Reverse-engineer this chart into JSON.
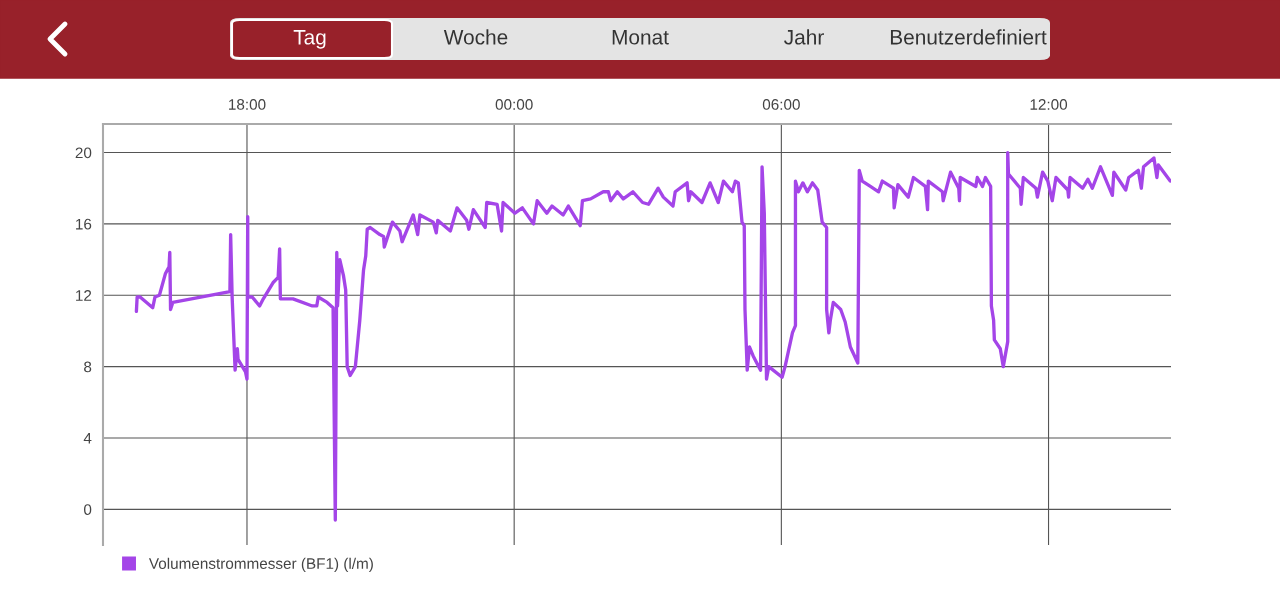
{
  "chart_data": {
    "type": "line",
    "annotations": [
      "Tag",
      "Woche",
      "Monat",
      "Jahr",
      "Benutzerdefiniert"
    ],
    "xlim": [
      "2000-01-01T14:46",
      "2000-01-02T14:45"
    ],
    "xticks": [
      {
        "value": "2000-01-01T18:00",
        "label": "18:00"
      },
      {
        "value": "2000-01-02T00:00",
        "label": "00:00"
      },
      {
        "value": "2000-01-02T06:00",
        "label": "06:00"
      },
      {
        "value": "2000-01-02T12:00",
        "label": "12:00"
      }
    ],
    "ylim": [
      -2,
      21.6
    ],
    "yticks": [
      0,
      4,
      8,
      12,
      16,
      20
    ],
    "grid": true,
    "legend": "bottom left",
    "marker": "none",
    "line_style": "solid",
    "series": [
      {
        "name": "Volumenstrommesser (BF1) (l/m)",
        "color": "#a445e8",
        "x": [
          "2000-01-01T15:31",
          "2000-01-01T15:32",
          "2000-01-01T15:36",
          "2000-01-01T15:53",
          "2000-01-01T15:56",
          "2000-01-01T16:02",
          "2000-01-01T16:10",
          "2000-01-01T16:15",
          "2000-01-01T16:16",
          "2000-01-01T16:17",
          "2000-01-01T16:20",
          "2000-01-01T17:37",
          "2000-01-01T17:38",
          "2000-01-01T17:40",
          "2000-01-01T17:44",
          "2000-01-01T17:47",
          "2000-01-01T17:48",
          "2000-01-01T17:58",
          "2000-01-01T18:00",
          "2000-01-01T18:01",
          "2000-01-01T18:01",
          "2000-01-01T18:07",
          "2000-01-01T18:17",
          "2000-01-01T18:22",
          "2000-01-01T18:35",
          "2000-01-01T18:42",
          "2000-01-01T18:44",
          "2000-01-01T18:45",
          "2000-01-01T19:02",
          "2000-01-01T19:28",
          "2000-01-01T19:34",
          "2000-01-01T19:36",
          "2000-01-01T19:48",
          "2000-01-01T19:56",
          "2000-01-01T19:59",
          "2000-01-01T20:01",
          "2000-01-01T20:02",
          "2000-01-01T20:05",
          "2000-01-01T20:10",
          "2000-01-01T20:13",
          "2000-01-01T20:15",
          "2000-01-01T20:19",
          "2000-01-01T20:26",
          "2000-01-01T20:32",
          "2000-01-01T20:37",
          "2000-01-01T20:40",
          "2000-01-01T20:42",
          "2000-01-01T20:46",
          "2000-01-01T20:59",
          "2000-01-01T21:04",
          "2000-01-01T21:05",
          "2000-01-01T21:16",
          "2000-01-01T21:26",
          "2000-01-01T21:29",
          "2000-01-01T21:44",
          "2000-01-01T21:50",
          "2000-01-01T21:53",
          "2000-01-01T22:11",
          "2000-01-01T22:15",
          "2000-01-01T22:17",
          "2000-01-01T22:34",
          "2000-01-01T22:43",
          "2000-01-01T22:56",
          "2000-01-01T22:59",
          "2000-01-01T23:05",
          "2000-01-01T23:21",
          "2000-01-01T23:23",
          "2000-01-01T23:37",
          "2000-01-01T23:43",
          "2000-01-01T23:45",
          "2000-01-02T00:01",
          "2000-01-02T00:11",
          "2000-01-02T00:26",
          "2000-01-02T00:31",
          "2000-01-02T00:44",
          "2000-01-02T00:51",
          "2000-01-02T01:06",
          "2000-01-02T01:13",
          "2000-01-02T01:29",
          "2000-01-02T01:32",
          "2000-01-02T01:43",
          "2000-01-02T02:00",
          "2000-01-02T02:07",
          "2000-01-02T02:10",
          "2000-01-02T02:19",
          "2000-01-02T02:27",
          "2000-01-02T02:40",
          "2000-01-02T02:53",
          "2000-01-02T03:01",
          "2000-01-02T03:14",
          "2000-01-02T03:21",
          "2000-01-02T03:34",
          "2000-01-02T03:37",
          "2000-01-02T03:53",
          "2000-01-02T03:55",
          "2000-01-02T03:58",
          "2000-01-02T04:13",
          "2000-01-02T04:24",
          "2000-01-02T04:35",
          "2000-01-02T04:42",
          "2000-01-02T04:54",
          "2000-01-02T04:58",
          "2000-01-02T05:02",
          "2000-01-02T05:07",
          "2000-01-02T05:10",
          "2000-01-02T05:11",
          "2000-01-02T05:14",
          "2000-01-02T05:17",
          "2000-01-02T05:22",
          "2000-01-02T05:32",
          "2000-01-02T05:34",
          "2000-01-02T05:37",
          "2000-01-02T05:40",
          "2000-01-02T05:43",
          "2000-01-02T06:01",
          "2000-01-02T06:05",
          "2000-01-02T06:15",
          "2000-01-02T06:19",
          "2000-01-02T06:19",
          "2000-01-02T06:23",
          "2000-01-02T06:29",
          "2000-01-02T06:35",
          "2000-01-02T06:42",
          "2000-01-02T06:49",
          "2000-01-02T06:55",
          "2000-01-02T07:01",
          "2000-01-02T07:01",
          "2000-01-02T07:04",
          "2000-01-02T07:06",
          "2000-01-02T07:10",
          "2000-01-02T07:20",
          "2000-01-02T07:26",
          "2000-01-02T07:33",
          "2000-01-02T07:43",
          "2000-01-02T07:45",
          "2000-01-02T07:49",
          "2000-01-02T08:00",
          "2000-01-02T08:11",
          "2000-01-02T08:16",
          "2000-01-02T08:31",
          "2000-01-02T08:32",
          "2000-01-02T08:37",
          "2000-01-02T08:51",
          "2000-01-02T08:58",
          "2000-01-02T09:14",
          "2000-01-02T09:17",
          "2000-01-02T09:18",
          "2000-01-02T09:37",
          "2000-01-02T09:38",
          "2000-01-02T09:48",
          "2000-01-02T09:59",
          "2000-01-02T10:00",
          "2000-01-02T10:01",
          "2000-01-02T10:22",
          "2000-01-02T10:24",
          "2000-01-02T10:31",
          "2000-01-02T10:35",
          "2000-01-02T10:42",
          "2000-01-02T10:43",
          "2000-01-02T10:46",
          "2000-01-02T10:47",
          "2000-01-02T10:55",
          "2000-01-02T10:59",
          "2000-01-02T11:05",
          "2000-01-02T11:05",
          "2000-01-02T11:06",
          "2000-01-02T11:22",
          "2000-01-02T11:23",
          "2000-01-02T11:26",
          "2000-01-02T11:43",
          "2000-01-02T11:45",
          "2000-01-02T11:52",
          "2000-01-02T11:59",
          "2000-01-02T12:05",
          "2000-01-02T12:10",
          "2000-01-02T12:26",
          "2000-01-02T12:27",
          "2000-01-02T12:29",
          "2000-01-02T12:46",
          "2000-01-02T12:53",
          "2000-01-02T12:59",
          "2000-01-02T13:10",
          "2000-01-02T13:26",
          "2000-01-02T13:28",
          "2000-01-02T13:44",
          "2000-01-02T13:48",
          "2000-01-02T14:01",
          "2000-01-02T14:05",
          "2000-01-02T14:08",
          "2000-01-02T14:22",
          "2000-01-02T14:26",
          "2000-01-02T14:28",
          "2000-01-02T14:44"
        ],
        "values": [
          11.1,
          11.9,
          11.9,
          11.3,
          11.9,
          12.0,
          13.2,
          13.6,
          14.4,
          11.2,
          11.6,
          12.2,
          15.4,
          11.9,
          7.8,
          9.0,
          8.4,
          7.7,
          7.3,
          16.4,
          11.9,
          11.9,
          11.4,
          11.8,
          12.7,
          13.0,
          14.6,
          11.8,
          11.8,
          11.4,
          11.4,
          11.9,
          11.6,
          11.3,
          -0.6,
          14.4,
          11.4,
          14.0,
          13.1,
          12.3,
          8.0,
          7.5,
          8.0,
          10.6,
          13.4,
          14.2,
          15.7,
          15.8,
          15.4,
          15.3,
          14.7,
          16.1,
          15.6,
          15.0,
          16.5,
          15.4,
          16.5,
          16.1,
          15.5,
          16.2,
          15.6,
          16.9,
          16.2,
          15.7,
          16.8,
          15.8,
          17.2,
          17.1,
          15.6,
          17.2,
          16.6,
          16.9,
          16.0,
          17.3,
          16.6,
          17.0,
          16.5,
          17.0,
          15.9,
          17.3,
          17.4,
          17.8,
          17.8,
          17.3,
          17.8,
          17.4,
          17.8,
          17.2,
          17.1,
          18.0,
          17.5,
          17.0,
          17.8,
          18.3,
          17.3,
          17.8,
          17.2,
          18.3,
          17.2,
          18.4,
          17.8,
          18.4,
          18.3,
          16.1,
          15.9,
          11.2,
          7.8,
          9.1,
          8.6,
          7.8,
          19.2,
          16.6,
          7.3,
          8.0,
          7.4,
          8.0,
          9.9,
          10.3,
          18.4,
          17.8,
          18.3,
          17.8,
          18.3,
          17.9,
          16.1,
          15.8,
          11.2,
          9.9,
          10.6,
          11.6,
          11.2,
          10.5,
          9.1,
          8.2,
          19.0,
          18.4,
          18.1,
          17.8,
          18.4,
          18.0,
          16.9,
          18.2,
          17.5,
          18.6,
          18.1,
          16.8,
          18.4,
          17.8,
          17.3,
          18.9,
          18.0,
          17.3,
          18.6,
          18.1,
          18.6,
          18.1,
          18.6,
          18.1,
          11.4,
          10.6,
          9.5,
          9.0,
          8.0,
          9.4,
          20.0,
          18.8,
          18.0,
          17.1,
          18.6,
          18.0,
          17.5,
          18.9,
          18.4,
          17.3,
          18.6,
          17.9,
          17.5,
          18.6,
          18.0,
          18.5,
          18.0,
          19.2,
          17.6,
          18.9,
          17.9,
          18.6,
          19.0,
          18.0,
          19.2,
          19.7,
          18.6,
          19.3,
          18.4
        ]
      }
    ]
  }
}
